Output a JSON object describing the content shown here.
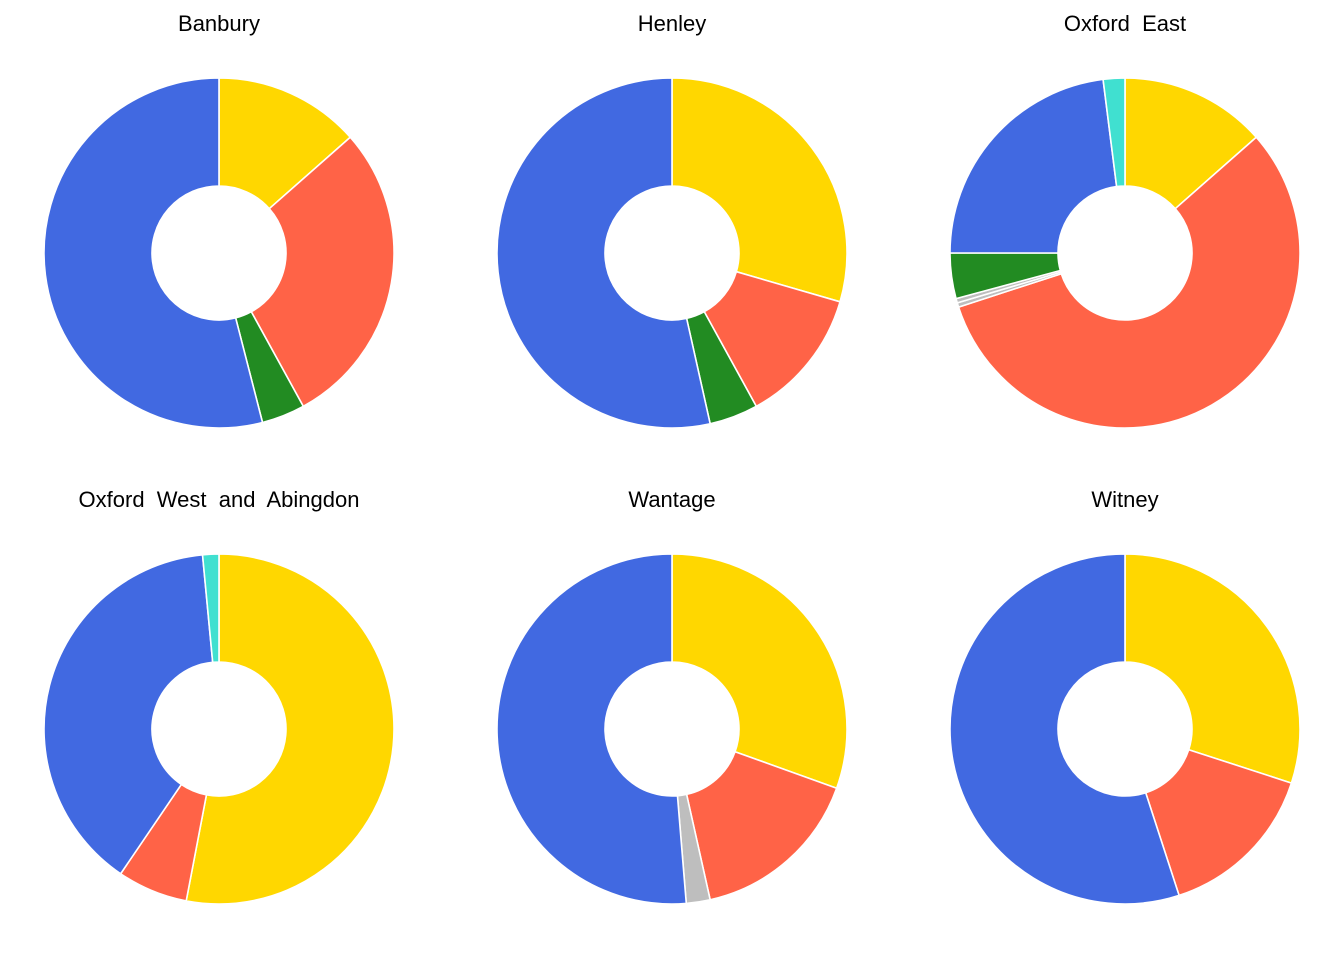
{
  "chart_data": [
    {
      "type": "pie",
      "title": "Banbury",
      "slices": [
        {
          "color": "#FFD700",
          "value": 0.135
        },
        {
          "color": "#FF6347",
          "value": 0.285
        },
        {
          "color": "#228B22",
          "value": 0.04
        },
        {
          "color": "#4169E1",
          "value": 0.54
        }
      ]
    },
    {
      "type": "pie",
      "title": "Henley",
      "slices": [
        {
          "color": "#FFD700",
          "value": 0.295
        },
        {
          "color": "#FF6347",
          "value": 0.125
        },
        {
          "color": "#228B22",
          "value": 0.045
        },
        {
          "color": "#4169E1",
          "value": 0.535
        }
      ]
    },
    {
      "type": "pie",
      "title": "Oxford  East",
      "slices": [
        {
          "color": "#FFD700",
          "value": 0.135
        },
        {
          "color": "#FF6347",
          "value": 0.565
        },
        {
          "color": "#BEBEBE",
          "value": 0.004
        },
        {
          "color": "#BEBEBE",
          "value": 0.004
        },
        {
          "color": "#228B22",
          "value": 0.042
        },
        {
          "color": "#4169E1",
          "value": 0.23
        },
        {
          "color": "#40E0D0",
          "value": 0.02
        }
      ]
    },
    {
      "type": "pie",
      "title": "Oxford  West  and  Abingdon",
      "slices": [
        {
          "color": "#FFD700",
          "value": 0.53
        },
        {
          "color": "#FF6347",
          "value": 0.065
        },
        {
          "color": "#4169E1",
          "value": 0.39
        },
        {
          "color": "#40E0D0",
          "value": 0.015
        }
      ]
    },
    {
      "type": "pie",
      "title": "Wantage",
      "slices": [
        {
          "color": "#FFD700",
          "value": 0.305
        },
        {
          "color": "#FF6347",
          "value": 0.16
        },
        {
          "color": "#BEBEBE",
          "value": 0.022
        },
        {
          "color": "#4169E1",
          "value": 0.513
        }
      ]
    },
    {
      "type": "pie",
      "title": "Witney",
      "slices": [
        {
          "color": "#FFD700",
          "value": 0.3
        },
        {
          "color": "#FF6347",
          "value": 0.15
        },
        {
          "color": "#4169E1",
          "value": 0.55
        }
      ]
    }
  ]
}
